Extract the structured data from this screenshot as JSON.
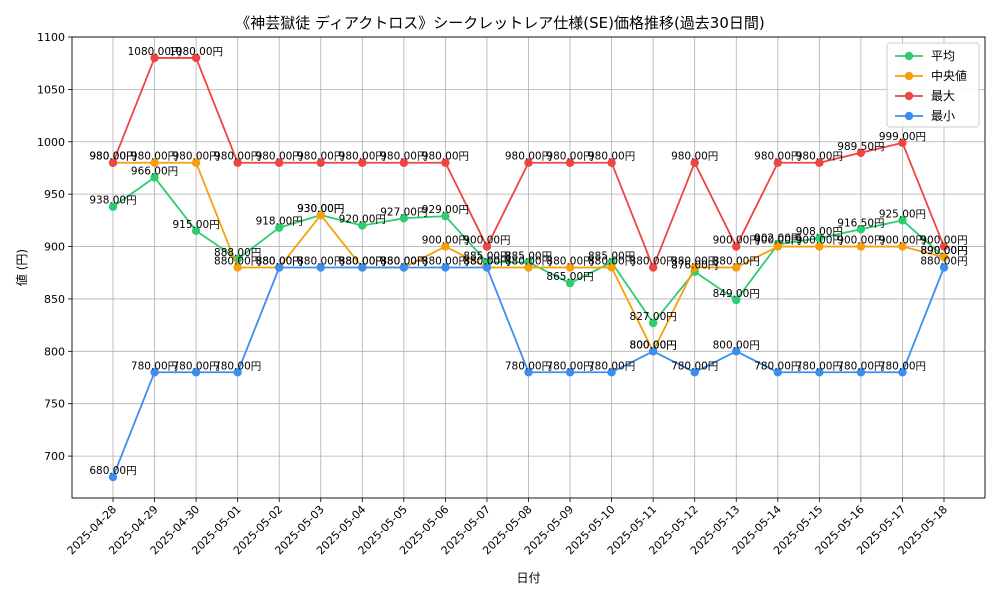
{
  "chart_data": {
    "type": "line",
    "title": "《神芸獄徒 ディアクトロス》シークレットレア仕様(SE)価格推移(過去30日間)",
    "xlabel": "日付",
    "ylabel": "値 (円)",
    "ylim": [
      660,
      1100
    ],
    "yticks": [
      700,
      750,
      800,
      850,
      900,
      950,
      1000,
      1050,
      1100
    ],
    "grid": true,
    "legend_position": "top-right",
    "value_suffix": "円",
    "categories": [
      "2025-04-28",
      "2025-04-29",
      "2025-04-30",
      "2025-05-01",
      "2025-05-02",
      "2025-05-03",
      "2025-05-04",
      "2025-05-05",
      "2025-05-06",
      "2025-05-07",
      "2025-05-08",
      "2025-05-09",
      "2025-05-10",
      "2025-05-11",
      "2025-05-12",
      "2025-05-13",
      "2025-05-14",
      "2025-05-15",
      "2025-05-16",
      "2025-05-17",
      "2025-05-18"
    ],
    "series": [
      {
        "name": "平均",
        "color": "#2ecc71",
        "values": [
          938,
          966,
          915,
          888,
          918,
          930,
          920,
          927,
          929,
          885,
          885,
          865,
          885,
          827,
          876,
          849,
          902,
          908,
          916.5,
          925,
          890
        ]
      },
      {
        "name": "中央値",
        "color": "#f5a00a",
        "values": [
          980,
          980,
          980,
          880,
          880,
          930,
          880,
          880,
          900,
          880,
          880,
          880,
          880,
          800,
          880,
          880,
          900,
          900,
          900,
          900,
          890
        ]
      },
      {
        "name": "最大",
        "color": "#ef4444",
        "values": [
          980,
          1080,
          1080,
          980,
          980,
          980,
          980,
          980,
          980,
          900,
          980,
          980,
          980,
          880,
          980,
          900,
          980,
          980,
          989.5,
          999,
          900
        ]
      },
      {
        "name": "最小",
        "color": "#3b8ef0",
        "values": [
          680,
          780,
          780,
          780,
          880,
          880,
          880,
          880,
          880,
          880,
          780,
          780,
          780,
          800,
          780,
          800,
          780,
          780,
          780,
          780,
          880
        ]
      }
    ]
  }
}
